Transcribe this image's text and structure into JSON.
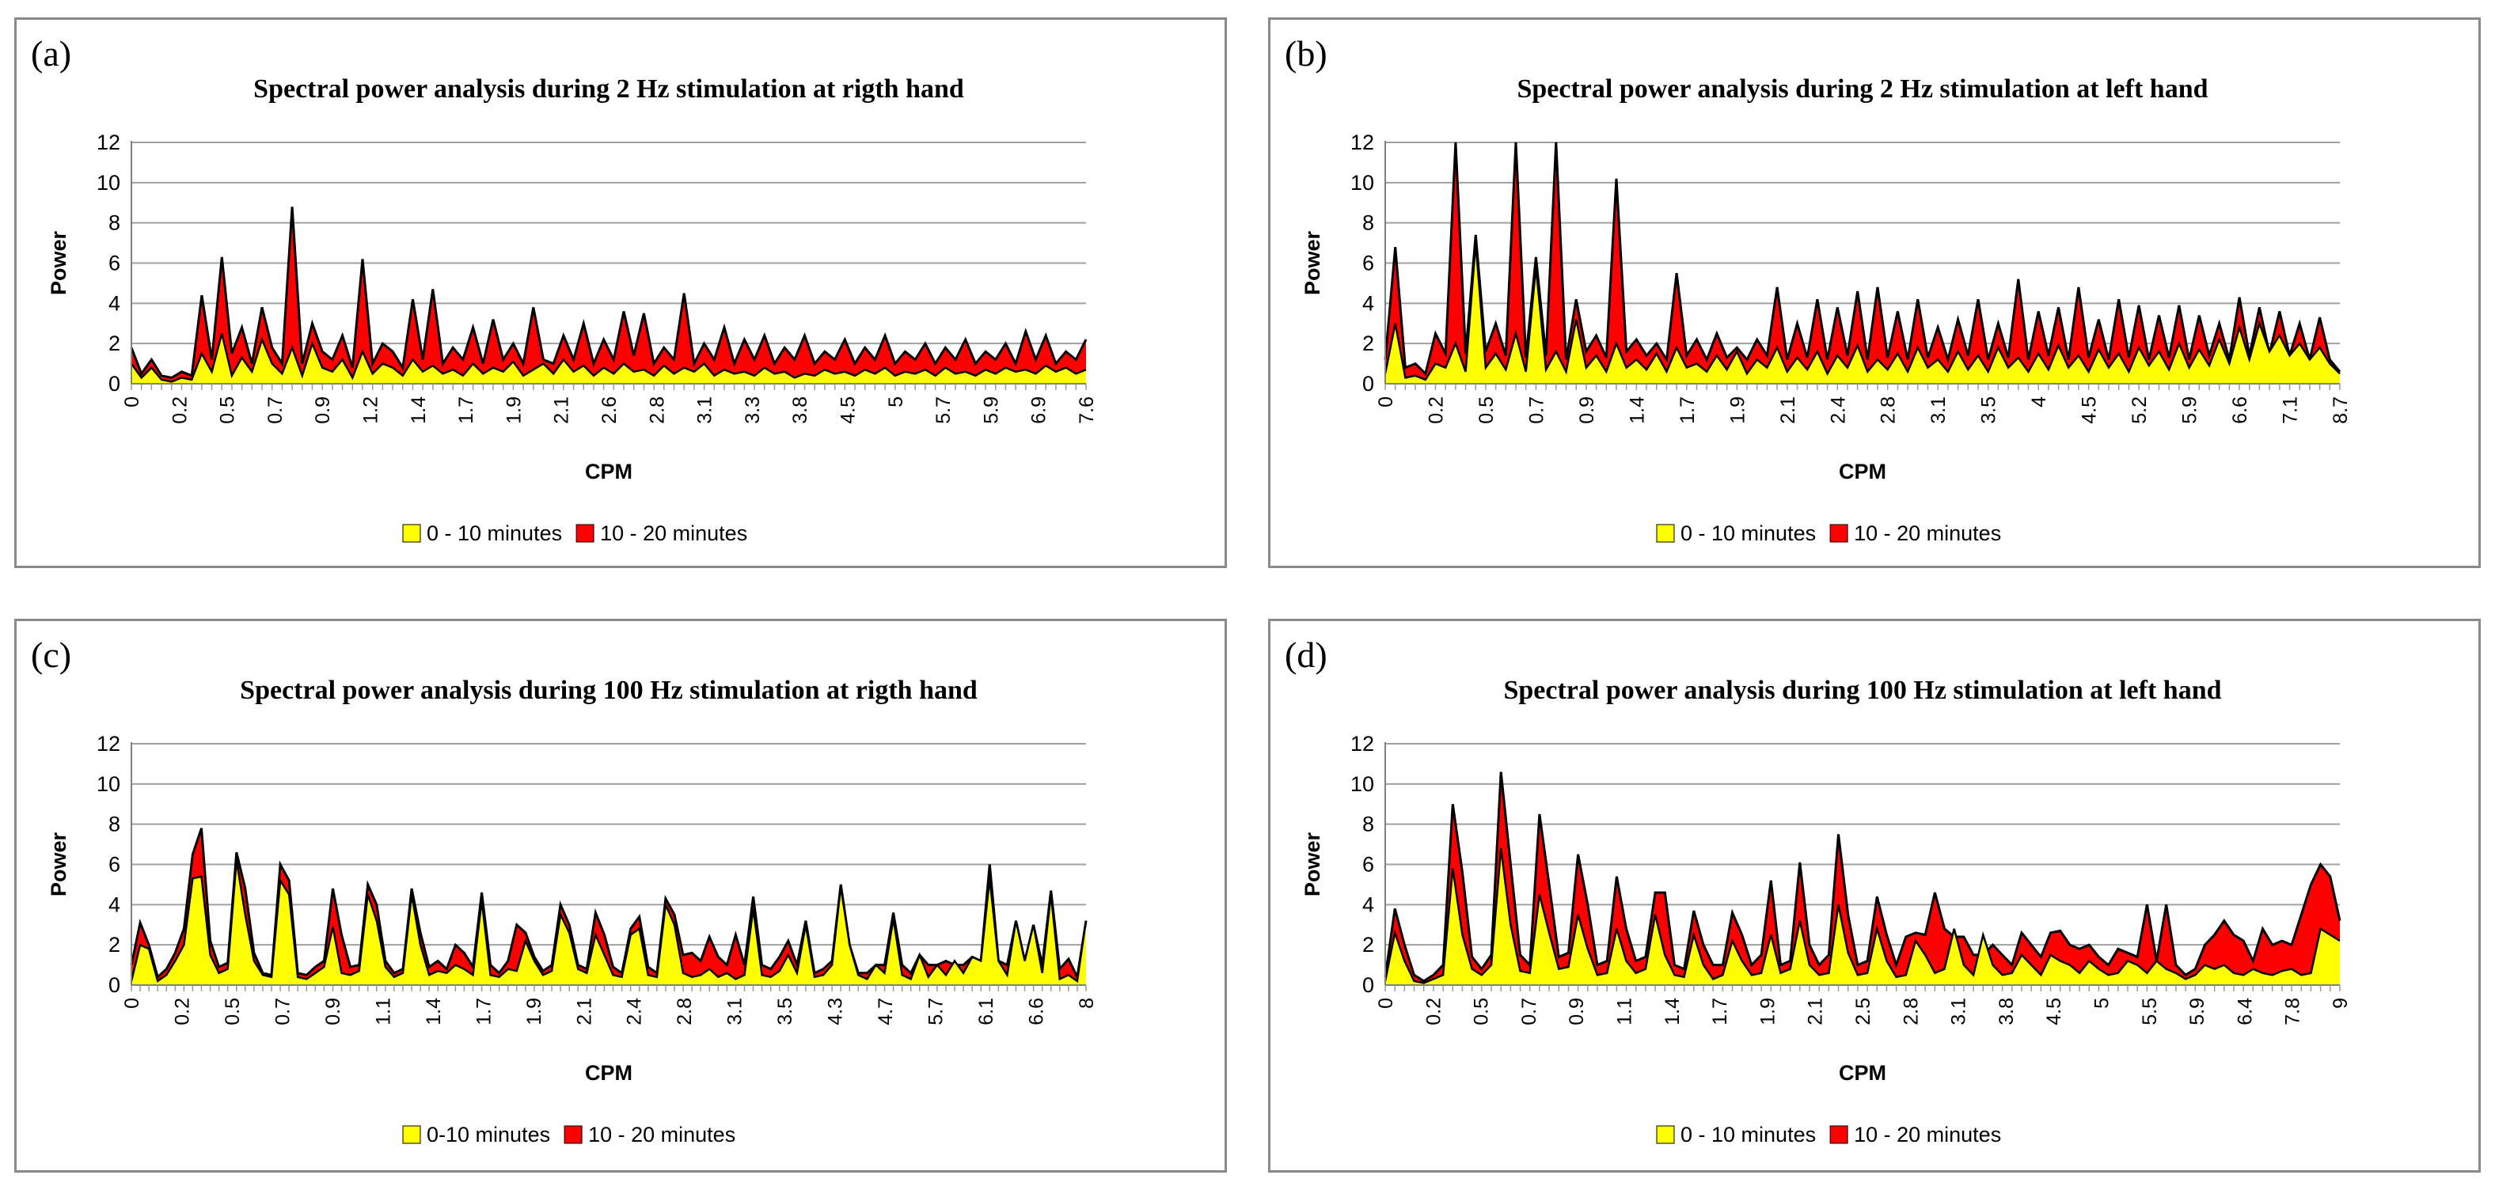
{
  "colors": {
    "yellow": "#ffff00",
    "red": "#ff0000",
    "line": "#000000",
    "grid": "#a0a0a0"
  },
  "chart_data": [
    {
      "panel_label": "(a)",
      "type": "area",
      "title": "Spectral power analysis during 2 Hz stimulation at rigth hand",
      "xlabel": "CPM",
      "ylabel": "Power",
      "ylim": [
        0,
        12
      ],
      "yticks": [
        0,
        2,
        4,
        6,
        8,
        10,
        12
      ],
      "xtick_labels": [
        "0",
        "0.2",
        "0.5",
        "0.7",
        "0.9",
        "1.2",
        "1.4",
        "1.7",
        "1.9",
        "2.1",
        "2.6",
        "2.8",
        "3.1",
        "3.3",
        "3.8",
        "4.5",
        "5",
        "5.7",
        "5.9",
        "6.9",
        "7.6"
      ],
      "legend": [
        "0 - 10 minutes",
        "10 - 20 minutes"
      ],
      "series": [
        {
          "name": "0 - 10 minutes",
          "values": [
            1.0,
            0.3,
            0.8,
            0.2,
            0.1,
            0.3,
            0.2,
            1.5,
            0.6,
            2.5,
            0.4,
            1.3,
            0.6,
            2.2,
            1.0,
            0.5,
            1.8,
            0.4,
            2.0,
            0.8,
            0.6,
            1.2,
            0.3,
            1.6,
            0.5,
            1.0,
            0.8,
            0.4,
            1.2,
            0.6,
            0.9,
            0.5,
            0.7,
            0.4,
            1.0,
            0.5,
            0.8,
            0.6,
            1.1,
            0.4,
            0.7,
            1.0,
            0.5,
            1.2,
            0.6,
            0.9,
            0.4,
            0.8,
            0.5,
            1.0,
            0.6,
            0.7,
            0.4,
            0.9,
            0.5,
            0.8,
            0.6,
            1.0,
            0.4,
            0.7,
            0.5,
            0.6,
            0.4,
            0.8,
            0.5,
            0.6,
            0.3,
            0.5,
            0.4,
            0.7,
            0.5,
            0.6,
            0.4,
            0.7,
            0.5,
            0.8,
            0.4,
            0.6,
            0.5,
            0.7,
            0.4,
            0.8,
            0.5,
            0.6,
            0.4,
            0.7,
            0.5,
            0.8,
            0.6,
            0.7,
            0.5,
            0.9,
            0.6,
            0.8,
            0.5,
            0.7
          ]
        },
        {
          "name": "10 - 20 minutes",
          "values": [
            1.8,
            0.5,
            1.2,
            0.4,
            0.3,
            0.6,
            0.4,
            4.4,
            1.2,
            6.3,
            1.5,
            2.8,
            1.0,
            3.8,
            1.8,
            1.0,
            8.8,
            1.0,
            3.0,
            1.6,
            1.2,
            2.4,
            0.8,
            6.2,
            1.0,
            2.0,
            1.6,
            0.8,
            4.2,
            1.2,
            4.7,
            1.0,
            1.8,
            1.2,
            2.8,
            1.0,
            3.2,
            1.2,
            2.0,
            1.0,
            3.8,
            1.2,
            1.0,
            2.4,
            1.2,
            3.0,
            1.0,
            2.2,
            1.2,
            3.6,
            1.4,
            3.5,
            1.0,
            1.8,
            1.2,
            4.5,
            1.0,
            2.0,
            1.2,
            2.8,
            1.0,
            2.2,
            1.2,
            2.4,
            1.0,
            1.8,
            1.2,
            2.4,
            1.0,
            1.6,
            1.2,
            2.2,
            1.0,
            1.8,
            1.2,
            2.4,
            1.0,
            1.6,
            1.2,
            2.0,
            1.0,
            1.8,
            1.2,
            2.2,
            1.0,
            1.6,
            1.2,
            2.0,
            1.0,
            2.6,
            1.2,
            2.4,
            1.0,
            1.6,
            1.2,
            2.2
          ]
        }
      ]
    },
    {
      "panel_label": "(b)",
      "type": "area",
      "title": "Spectral power analysis during 2 Hz stimulation at left hand",
      "xlabel": "CPM",
      "ylabel": "Power",
      "ylim": [
        0,
        12
      ],
      "yticks": [
        0,
        2,
        4,
        6,
        8,
        10,
        12
      ],
      "xtick_labels": [
        "0",
        "0.2",
        "0.5",
        "0.7",
        "0.9",
        "1.4",
        "1.7",
        "1.9",
        "2.1",
        "2.4",
        "2.8",
        "3.1",
        "3.5",
        "4",
        "4.5",
        "5.2",
        "5.9",
        "6.6",
        "7.1",
        "8.7"
      ],
      "legend": [
        "0 - 10 minutes",
        "10 - 20 minutes"
      ],
      "series": [
        {
          "name": "0 - 10 minutes",
          "values": [
            0.5,
            3.0,
            0.3,
            0.4,
            0.2,
            1.0,
            0.8,
            2.0,
            0.6,
            7.0,
            0.8,
            1.5,
            0.7,
            2.5,
            0.6,
            5.8,
            0.7,
            1.6,
            0.6,
            3.2,
            0.8,
            1.4,
            0.6,
            2.0,
            0.8,
            1.2,
            0.7,
            1.5,
            0.6,
            1.8,
            0.8,
            1.0,
            0.6,
            1.4,
            0.7,
            1.6,
            0.5,
            1.2,
            0.8,
            1.8,
            0.6,
            1.3,
            0.7,
            1.6,
            0.5,
            1.4,
            0.8,
            1.9,
            0.6,
            1.2,
            0.7,
            1.5,
            0.6,
            1.8,
            0.8,
            1.2,
            0.6,
            1.6,
            0.7,
            1.4,
            0.6,
            1.8,
            0.8,
            1.3,
            0.6,
            1.5,
            0.7,
            1.9,
            0.8,
            1.4,
            0.6,
            1.7,
            0.8,
            1.5,
            0.6,
            1.8,
            0.9,
            1.6,
            0.7,
            2.0,
            0.8,
            1.7,
            0.9,
            2.2,
            1.0,
            2.8,
            1.2,
            3.0,
            1.6,
            2.4,
            1.4,
            2.0,
            1.2,
            1.8,
            1.0,
            0.5
          ]
        },
        {
          "name": "10 - 20 minutes",
          "values": [
            1.2,
            6.8,
            0.8,
            1.0,
            0.5,
            2.5,
            1.5,
            12.0,
            1.5,
            7.4,
            1.6,
            3.0,
            1.4,
            12.0,
            1.3,
            6.3,
            1.4,
            12.0,
            1.2,
            4.2,
            1.6,
            2.4,
            1.3,
            10.2,
            1.6,
            2.2,
            1.4,
            2.0,
            1.2,
            5.5,
            1.4,
            2.2,
            1.2,
            2.5,
            1.3,
            1.8,
            1.2,
            2.2,
            1.4,
            4.8,
            1.2,
            3.0,
            1.3,
            4.2,
            1.2,
            3.8,
            1.4,
            4.6,
            1.2,
            4.8,
            1.3,
            3.6,
            1.2,
            4.2,
            1.3,
            2.8,
            1.2,
            3.2,
            1.4,
            4.2,
            1.2,
            3.0,
            1.3,
            5.2,
            1.2,
            3.6,
            1.4,
            3.8,
            1.2,
            4.8,
            1.3,
            3.2,
            1.2,
            4.2,
            1.3,
            3.9,
            1.2,
            3.4,
            1.3,
            3.9,
            1.2,
            3.4,
            1.4,
            3.0,
            1.2,
            4.3,
            1.4,
            3.8,
            1.5,
            3.6,
            1.4,
            3.0,
            1.2,
            3.3,
            1.2,
            0.6
          ]
        }
      ]
    },
    {
      "panel_label": "(c)",
      "type": "area",
      "title": "Spectral power analysis during 100 Hz stimulation at rigth hand",
      "xlabel": "CPM",
      "ylabel": "Power",
      "ylim": [
        0,
        12
      ],
      "yticks": [
        0,
        2,
        4,
        6,
        8,
        10,
        12
      ],
      "xtick_labels": [
        "0",
        "0.2",
        "0.5",
        "0.7",
        "0.9",
        "1.1",
        "1.4",
        "1.7",
        "1.9",
        "2.1",
        "2.4",
        "2.8",
        "3.1",
        "3.5",
        "4.3",
        "4.7",
        "5.7",
        "6.1",
        "6.6",
        "8"
      ],
      "legend": [
        "0-10 minutes",
        "10 - 20 minutes"
      ],
      "series": [
        {
          "name": "0-10 minutes",
          "values": [
            0.2,
            2.0,
            1.8,
            0.2,
            0.5,
            1.2,
            2.0,
            5.3,
            5.4,
            1.5,
            0.6,
            0.8,
            6.2,
            3.5,
            1.2,
            0.5,
            0.4,
            5.2,
            4.5,
            0.4,
            0.3,
            0.6,
            0.9,
            2.9,
            0.6,
            0.5,
            0.7,
            4.5,
            3.2,
            0.9,
            0.4,
            0.6,
            4.5,
            2.0,
            0.5,
            0.7,
            0.6,
            1.0,
            0.8,
            0.5,
            4.2,
            0.5,
            0.4,
            0.8,
            0.7,
            2.2,
            1.2,
            0.5,
            0.7,
            3.5,
            2.6,
            0.8,
            0.6,
            2.5,
            1.5,
            0.5,
            0.4,
            2.5,
            2.8,
            0.5,
            0.4,
            4.0,
            3.0,
            0.6,
            0.4,
            0.5,
            0.8,
            0.4,
            0.6,
            0.3,
            0.5,
            3.8,
            0.5,
            0.4,
            0.7,
            1.5,
            0.6,
            3.0,
            0.4,
            0.5,
            1.0,
            4.9,
            2.0,
            0.5,
            0.3,
            1.0,
            0.6,
            3.3,
            0.5,
            0.3,
            1.5,
            0.4,
            1.0,
            0.5,
            1.2,
            0.6,
            1.4,
            1.2,
            5.3,
            1.2,
            0.5,
            3.2,
            1.2,
            3.0,
            0.6,
            4.5,
            0.3,
            0.5,
            0.2,
            3.2
          ]
        },
        {
          "name": "10 - 20 minutes",
          "values": [
            1.0,
            3.1,
            2.0,
            0.4,
            0.8,
            1.6,
            2.8,
            6.5,
            7.8,
            2.2,
            0.9,
            1.1,
            6.6,
            4.8,
            1.6,
            0.6,
            0.5,
            6.0,
            5.2,
            0.6,
            0.5,
            0.9,
            1.2,
            4.8,
            2.5,
            0.9,
            1.0,
            5.0,
            4.0,
            1.2,
            0.6,
            0.8,
            4.8,
            2.6,
            0.9,
            1.2,
            0.8,
            2.0,
            1.6,
            0.9,
            4.6,
            1.0,
            0.6,
            1.2,
            3.0,
            2.6,
            1.4,
            0.7,
            1.0,
            4.0,
            3.0,
            1.0,
            0.8,
            3.6,
            2.5,
            0.9,
            0.6,
            2.8,
            3.4,
            0.9,
            0.6,
            4.3,
            3.5,
            1.5,
            1.6,
            1.2,
            2.4,
            1.4,
            1.0,
            2.5,
            1.0,
            4.4,
            1.0,
            0.8,
            1.4,
            2.2,
            1.0,
            3.2,
            0.6,
            0.8,
            1.2,
            5.0,
            2.0,
            0.6,
            0.6,
            1.0,
            1.0,
            3.6,
            1.0,
            0.6,
            1.5,
            1.0,
            1.0,
            1.2,
            1.0,
            1.0,
            1.4,
            1.2,
            6.0,
            1.2,
            1.0,
            3.2,
            1.2,
            3.0,
            1.0,
            4.7,
            0.8,
            1.3,
            0.4,
            3.2
          ]
        }
      ]
    },
    {
      "panel_label": "(d)",
      "type": "area",
      "title": "Spectral power analysis during 100 Hz stimulation at left hand",
      "xlabel": "CPM",
      "ylabel": "Power",
      "ylim": [
        0,
        12
      ],
      "yticks": [
        0,
        2,
        4,
        6,
        8,
        10,
        12
      ],
      "xtick_labels": [
        "0",
        "0.2",
        "0.5",
        "0.7",
        "0.9",
        "1.1",
        "1.4",
        "1.7",
        "1.9",
        "2.1",
        "2.5",
        "2.8",
        "3.1",
        "3.8",
        "4.5",
        "5",
        "5.5",
        "5.9",
        "6.4",
        "7.8",
        "9"
      ],
      "legend": [
        "0 - 10 minutes",
        "10 - 20 minutes"
      ],
      "series": [
        {
          "name": "0 - 10 minutes",
          "values": [
            0.2,
            2.6,
            1.2,
            0.2,
            0.1,
            0.3,
            0.5,
            5.8,
            2.5,
            0.8,
            0.5,
            1.0,
            6.8,
            3.0,
            0.7,
            0.6,
            4.5,
            2.6,
            0.8,
            0.9,
            3.5,
            1.8,
            0.5,
            0.6,
            2.8,
            1.2,
            0.6,
            0.8,
            3.5,
            1.5,
            0.5,
            0.4,
            2.5,
            1.0,
            0.3,
            0.5,
            2.2,
            1.2,
            0.5,
            0.6,
            2.5,
            0.6,
            0.8,
            3.2,
            1.0,
            0.5,
            0.6,
            4.0,
            1.6,
            0.5,
            0.6,
            2.8,
            1.2,
            0.4,
            0.5,
            2.2,
            1.5,
            0.6,
            0.8,
            2.8,
            1.0,
            0.5,
            2.5,
            1.0,
            0.5,
            0.6,
            1.5,
            1.0,
            0.5,
            1.5,
            1.2,
            1.0,
            0.6,
            1.2,
            0.8,
            0.5,
            0.6,
            1.2,
            1.0,
            0.6,
            1.2,
            0.8,
            0.6,
            0.3,
            0.5,
            1.0,
            0.8,
            1.0,
            0.6,
            0.5,
            0.8,
            0.6,
            0.5,
            0.7,
            0.8,
            0.5,
            0.6,
            2.8,
            2.5,
            2.2
          ]
        },
        {
          "name": "10 - 20 minutes",
          "values": [
            0.4,
            3.8,
            2.0,
            0.5,
            0.2,
            0.5,
            1.0,
            9.0,
            5.6,
            1.4,
            0.8,
            1.5,
            10.6,
            6.0,
            1.5,
            1.0,
            8.5,
            5.0,
            1.4,
            1.6,
            6.5,
            4.0,
            1.0,
            1.2,
            5.4,
            2.8,
            1.2,
            1.4,
            4.6,
            4.6,
            1.0,
            0.8,
            3.7,
            2.0,
            1.0,
            1.0,
            3.6,
            2.5,
            1.0,
            1.5,
            5.2,
            1.0,
            1.2,
            6.1,
            2.0,
            1.0,
            1.5,
            7.5,
            3.5,
            1.0,
            1.2,
            4.4,
            2.5,
            1.0,
            2.4,
            2.6,
            2.5,
            4.6,
            2.8,
            2.4,
            2.4,
            1.5,
            1.5,
            2.0,
            1.5,
            1.0,
            2.6,
            2.0,
            1.4,
            2.6,
            2.7,
            2.0,
            1.8,
            2.0,
            1.4,
            1.0,
            1.8,
            1.6,
            1.4,
            4.0,
            1.2,
            4.0,
            1.0,
            0.5,
            0.8,
            2.0,
            2.5,
            3.2,
            2.5,
            2.2,
            1.2,
            2.8,
            2.0,
            2.2,
            2.0,
            3.5,
            5.0,
            6.0,
            5.4,
            3.2
          ]
        }
      ]
    }
  ]
}
